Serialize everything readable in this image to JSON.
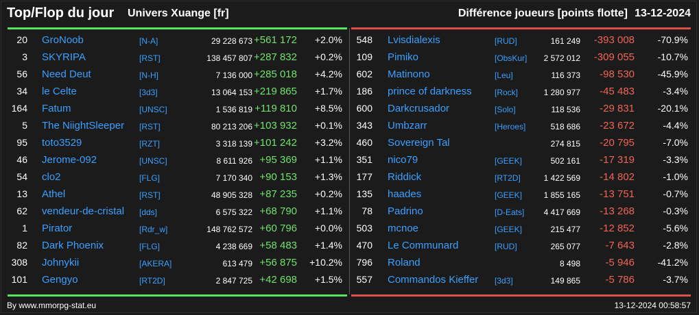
{
  "header": {
    "title": "Top/Flop du jour",
    "subtitle": "Univers Xuange [fr]",
    "right_title": "Différence joueurs [points flotte]",
    "date": "13-12-2024"
  },
  "colors": {
    "positive": "#6fe36b",
    "negative": "#f06455",
    "link": "#3aa0ff",
    "top_bar": "#55e65b",
    "flop_bar": "#e0504a"
  },
  "top": [
    {
      "rank": "20",
      "name": "GroNoob",
      "ally": "[N-A]",
      "points": "29 228 673",
      "diff": "+561 172",
      "pct": "+2.0%"
    },
    {
      "rank": "3",
      "name": "SKYRIPA",
      "ally": "[RST]",
      "points": "138 457 807",
      "diff": "+287 832",
      "pct": "+0.2%"
    },
    {
      "rank": "56",
      "name": "Need Deut",
      "ally": "[N-H]",
      "points": "7 136 000",
      "diff": "+285 018",
      "pct": "+4.2%"
    },
    {
      "rank": "34",
      "name": "le Celte",
      "ally": "[3d3]",
      "points": "13 064 153",
      "diff": "+219 865",
      "pct": "+1.7%"
    },
    {
      "rank": "164",
      "name": "Fatum",
      "ally": "[UNSC]",
      "points": "1 536 819",
      "diff": "+119 810",
      "pct": "+8.5%"
    },
    {
      "rank": "5",
      "name": "The NiightSleeper",
      "ally": "[RST]",
      "points": "80 213 206",
      "diff": "+103 932",
      "pct": "+0.1%"
    },
    {
      "rank": "95",
      "name": "toto3529",
      "ally": "[RZT]",
      "points": "3 318 139",
      "diff": "+101 242",
      "pct": "+3.2%"
    },
    {
      "rank": "46",
      "name": "Jerome-092",
      "ally": "[UNSC]",
      "points": "8 611 926",
      "diff": "+95 369",
      "pct": "+1.1%"
    },
    {
      "rank": "54",
      "name": "clo2",
      "ally": "[FLG]",
      "points": "7 170 340",
      "diff": "+90 153",
      "pct": "+1.3%"
    },
    {
      "rank": "13",
      "name": "Athel",
      "ally": "[RST]",
      "points": "48 905 328",
      "diff": "+87 235",
      "pct": "+0.2%"
    },
    {
      "rank": "62",
      "name": "vendeur-de-cristal",
      "ally": "[dds]",
      "points": "6 575 322",
      "diff": "+68 790",
      "pct": "+1.1%"
    },
    {
      "rank": "1",
      "name": "Pirator",
      "ally": "[Rdr_w]",
      "points": "148 762 572",
      "diff": "+60 796",
      "pct": "+0.0%"
    },
    {
      "rank": "82",
      "name": "Dark Phoenix",
      "ally": "[FLG]",
      "points": "4 238 669",
      "diff": "+58 483",
      "pct": "+1.4%"
    },
    {
      "rank": "308",
      "name": "Johnykii",
      "ally": "[AKERA]",
      "points": "613 479",
      "diff": "+56 875",
      "pct": "+10.2%"
    },
    {
      "rank": "101",
      "name": "Gengyo",
      "ally": "[RT2D]",
      "points": "2 847 725",
      "diff": "+42 698",
      "pct": "+1.5%"
    }
  ],
  "flop": [
    {
      "rank": "548",
      "name": "Lvisdialexis",
      "ally": "[RUD]",
      "points": "161 249",
      "diff": "-393 008",
      "pct": "-70.9%"
    },
    {
      "rank": "109",
      "name": "Pimiko",
      "ally": "[ObsKur]",
      "points": "2 572 012",
      "diff": "-309 055",
      "pct": "-10.7%"
    },
    {
      "rank": "602",
      "name": "Matinono",
      "ally": "[Leu]",
      "points": "116 373",
      "diff": "-98 530",
      "pct": "-45.9%"
    },
    {
      "rank": "186",
      "name": "prince of darkness",
      "ally": "[Rock]",
      "points": "1 280 977",
      "diff": "-45 483",
      "pct": "-3.4%"
    },
    {
      "rank": "600",
      "name": "Darkcrusador",
      "ally": "[Solo]",
      "points": "118 536",
      "diff": "-29 831",
      "pct": "-20.1%"
    },
    {
      "rank": "343",
      "name": "Umbzarr",
      "ally": "[Heroes]",
      "points": "518 686",
      "diff": "-23 672",
      "pct": "-4.4%"
    },
    {
      "rank": "460",
      "name": "Sovereign Tal",
      "ally": "",
      "points": "274 815",
      "diff": "-20 795",
      "pct": "-7.0%"
    },
    {
      "rank": "351",
      "name": "nico79",
      "ally": "[GEEK]",
      "points": "502 161",
      "diff": "-17 319",
      "pct": "-3.3%"
    },
    {
      "rank": "177",
      "name": "Riddick",
      "ally": "[RT2D]",
      "points": "1 422 569",
      "diff": "-14 802",
      "pct": "-1.0%"
    },
    {
      "rank": "135",
      "name": "haades",
      "ally": "[GEEK]",
      "points": "1 855 165",
      "diff": "-13 751",
      "pct": "-0.7%"
    },
    {
      "rank": "78",
      "name": "Padrino",
      "ally": "[D-Eats]",
      "points": "4 417 669",
      "diff": "-13 268",
      "pct": "-0.3%"
    },
    {
      "rank": "503",
      "name": "mcnoe",
      "ally": "[GEEK]",
      "points": "215 477",
      "diff": "-12 852",
      "pct": "-5.6%"
    },
    {
      "rank": "470",
      "name": "Le Communard",
      "ally": "[RUD]",
      "points": "265 077",
      "diff": "-7 643",
      "pct": "-2.8%"
    },
    {
      "rank": "796",
      "name": "Roland",
      "ally": "",
      "points": "8 498",
      "diff": "-5 946",
      "pct": "-41.2%"
    },
    {
      "rank": "557",
      "name": "Commandos Kieffer",
      "ally": "[3d3]",
      "points": "149 865",
      "diff": "-5 786",
      "pct": "-3.7%"
    }
  ],
  "footer": {
    "credit": "By www.mmorpg-stat.eu",
    "timestamp": "13-12-2024 00:58:57"
  }
}
